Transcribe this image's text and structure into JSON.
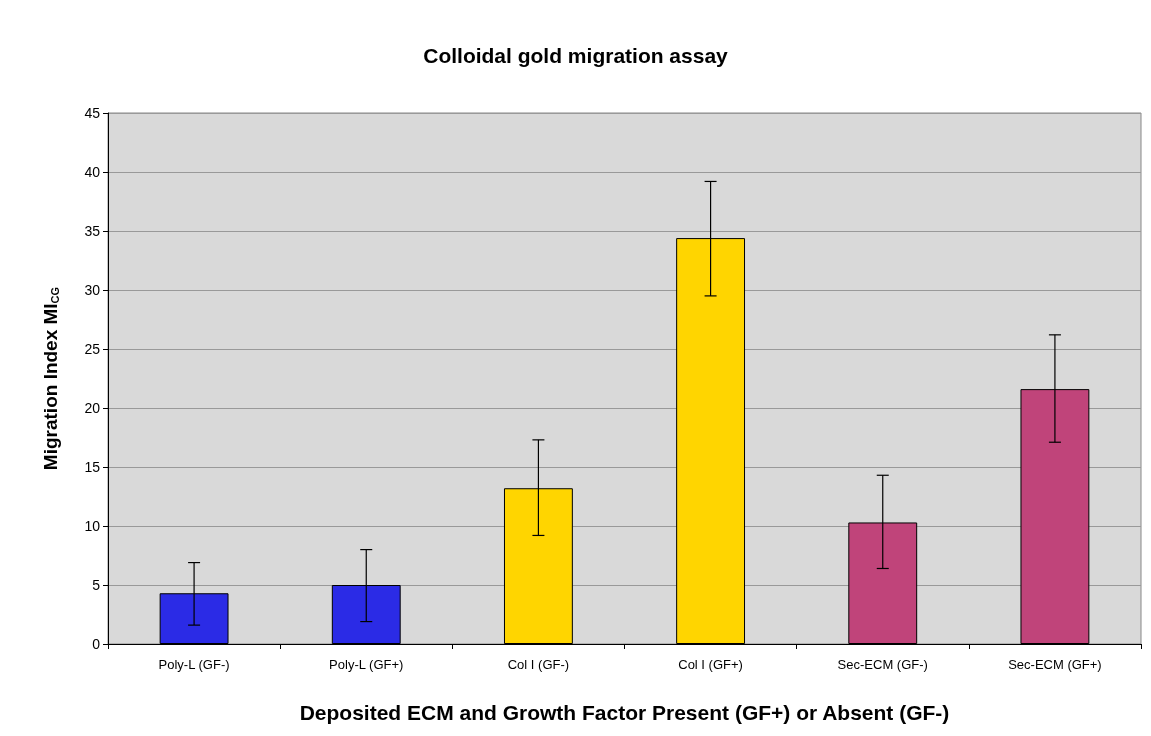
{
  "chart_data": {
    "type": "bar",
    "title": "Colloidal gold migration assay",
    "xlabel": "Deposited ECM and Growth Factor Present (GF+) or Absent (GF-)",
    "ylabel": "Migration Index MI$_{CG}$",
    "categories": [
      "Poly-L (GF-)",
      "Poly-L (GF+)",
      "Col I (GF-)",
      "Col I (GF+)",
      "Sec-ECM (GF-)",
      "Sec-ECM (GF+)"
    ],
    "values": [
      4.3,
      5.0,
      13.2,
      34.4,
      10.3,
      21.6
    ],
    "colors": [
      "#2b2be6",
      "#2b2be6",
      "#ffd500",
      "#ffd500",
      "#c0447a",
      "#c0447a"
    ],
    "errors": [
      [
        1.6,
        6.9
      ],
      [
        1.9,
        8.0
      ],
      [
        9.2,
        17.3
      ],
      [
        29.5,
        39.2
      ],
      [
        6.4,
        14.3
      ],
      [
        17.1,
        26.2
      ]
    ],
    "ylim": [
      0,
      45
    ],
    "yticks": [
      0,
      5,
      10,
      15,
      20,
      25,
      30,
      35,
      40,
      45
    ],
    "grid": "y"
  }
}
